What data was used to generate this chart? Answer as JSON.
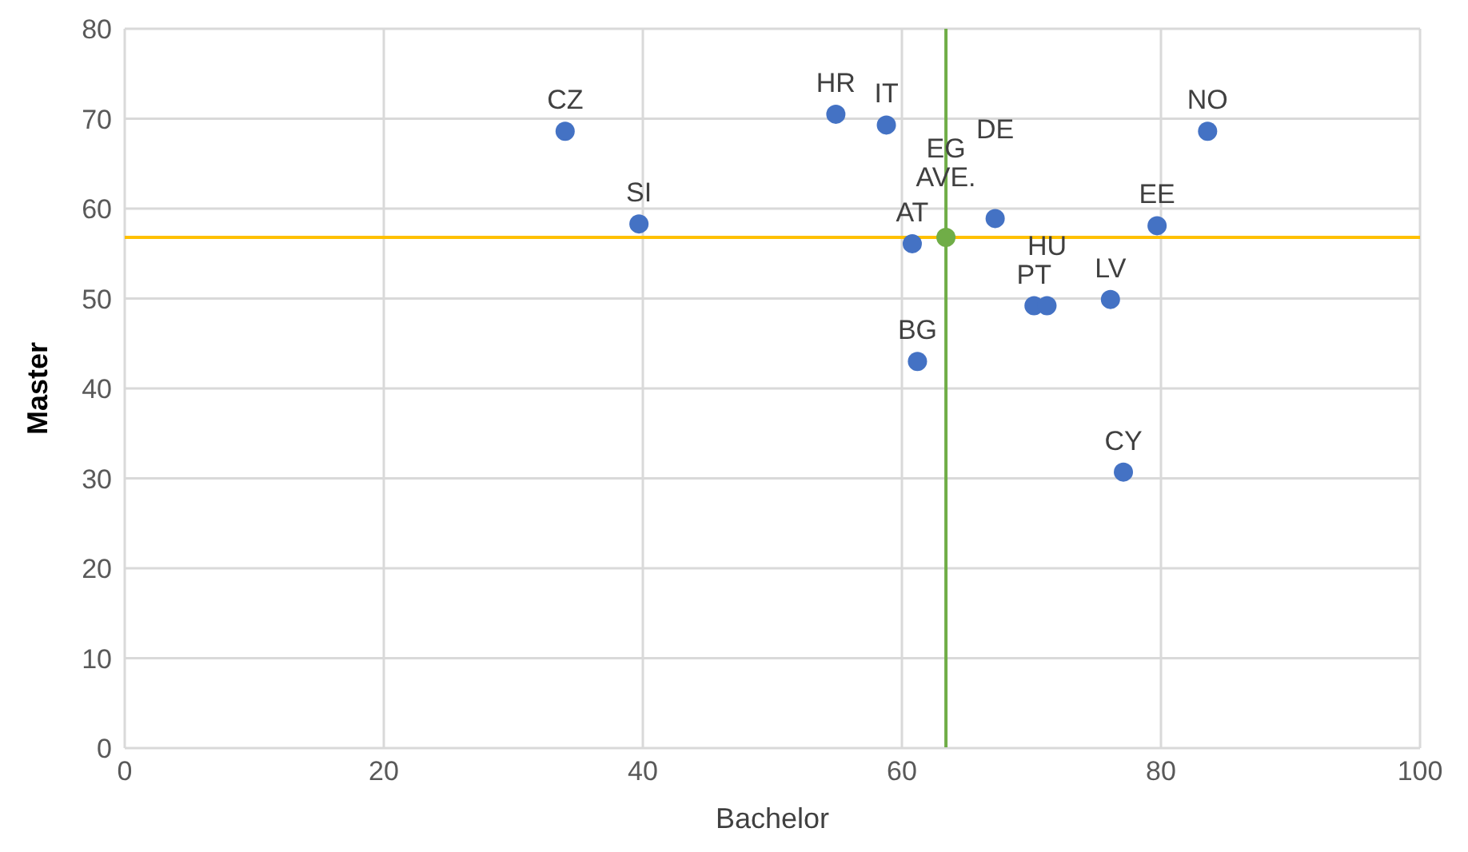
{
  "chart_data": {
    "type": "scatter",
    "xlabel": "Bachelor",
    "ylabel": "Master",
    "xlim": [
      0,
      100
    ],
    "xticks": [
      0,
      20,
      40,
      60,
      80,
      100
    ],
    "ylim": [
      0,
      80
    ],
    "yticks": [
      0,
      10,
      20,
      30,
      40,
      50,
      60,
      70,
      80
    ],
    "grid": true,
    "marker": "circle",
    "legend": false,
    "series": [
      {
        "color": "#4472c4",
        "x": [
          34,
          39.7,
          54.9,
          58.8,
          60.8,
          61.2,
          67.2,
          70.2,
          71.2,
          76.1,
          79.7,
          83.6,
          77.1
        ],
        "values": [
          68.6,
          58.3,
          70.5,
          69.3,
          56.1,
          43,
          58.9,
          49.2,
          49.2,
          49.9,
          58.1,
          68.6,
          30.7
        ]
      },
      {
        "color": "#70ad47",
        "x": [
          63.4
        ],
        "values": [
          56.8
        ]
      }
    ],
    "ref_lines": [
      {
        "axis": "x",
        "value": 63.4,
        "color": "#70ad47"
      },
      {
        "axis": "y",
        "value": 56.8,
        "color": "#ffc000"
      }
    ],
    "annotations": [
      {
        "text": "CZ",
        "x": 34,
        "y": 68.6
      },
      {
        "text": "SI",
        "x": 39.7,
        "y": 58.3
      },
      {
        "text": "HR",
        "x": 54.9,
        "y": 70.5
      },
      {
        "text": "IT",
        "x": 58.8,
        "y": 69.3
      },
      {
        "text": "AT",
        "x": 60.8,
        "y": 56.1
      },
      {
        "text": "AVE.",
        "x": 63.4,
        "y": 56.8
      },
      {
        "text": "EG",
        "x": 63.4,
        "y": 56.8
      },
      {
        "text": "BG",
        "x": 61.2,
        "y": 43
      },
      {
        "text": "DE",
        "x": 67.2,
        "y": 58.9
      },
      {
        "text": "PT",
        "x": 70.2,
        "y": 49.2
      },
      {
        "text": "HU",
        "x": 71.2,
        "y": 49.2
      },
      {
        "text": "LV",
        "x": 76.1,
        "y": 49.9
      },
      {
        "text": "EE",
        "x": 79.7,
        "y": 58.1
      },
      {
        "text": "NO",
        "x": 83.6,
        "y": 68.6
      },
      {
        "text": "CY",
        "x": 77.1,
        "y": 30.7
      }
    ]
  }
}
